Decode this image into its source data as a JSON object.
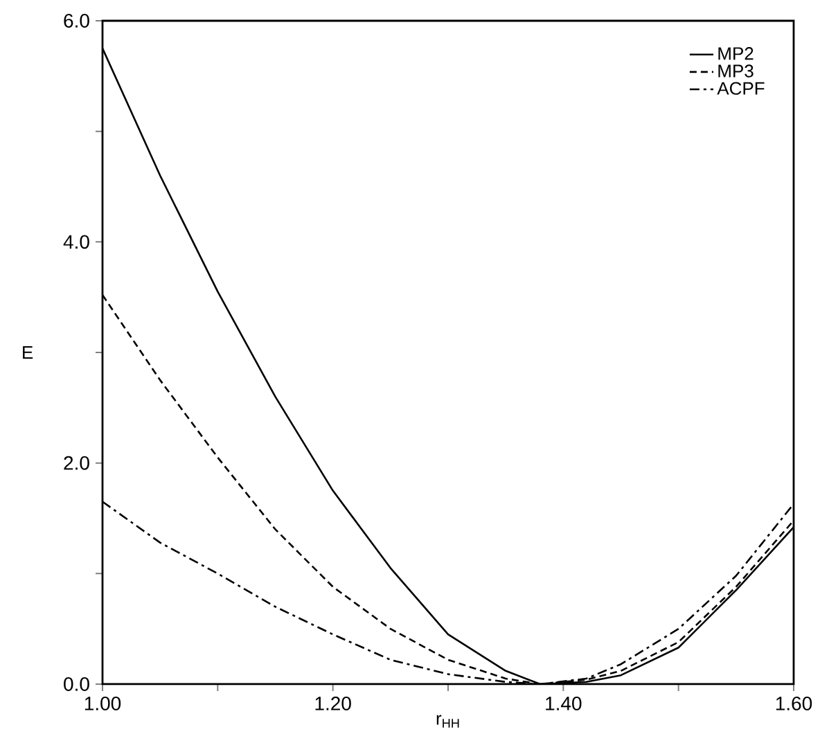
{
  "chart_data": {
    "type": "line",
    "xlabel": "r$_{HH}$",
    "ylabel": "E",
    "xlim": [
      1.0,
      1.6
    ],
    "ylim": [
      0.0,
      6.0
    ],
    "xticks": [
      {
        "value": 1.0,
        "label": "1.00"
      },
      {
        "value": 1.1,
        "label": null
      },
      {
        "value": 1.2,
        "label": "1.20"
      },
      {
        "value": 1.3,
        "label": null
      },
      {
        "value": 1.4,
        "label": "1.40"
      },
      {
        "value": 1.5,
        "label": null
      },
      {
        "value": 1.6,
        "label": "1.60"
      }
    ],
    "yticks": [
      {
        "value": 0,
        "label": "0.0"
      },
      {
        "value": 1,
        "label": null
      },
      {
        "value": 2,
        "label": "2.0"
      },
      {
        "value": 3,
        "label": null
      },
      {
        "value": 4,
        "label": "4.0"
      },
      {
        "value": 5,
        "label": null
      },
      {
        "value": 6,
        "label": "6.0"
      }
    ],
    "x": [
      1.0,
      1.05,
      1.1,
      1.15,
      1.2,
      1.25,
      1.3,
      1.35,
      1.38,
      1.42,
      1.45,
      1.5,
      1.55,
      1.6
    ],
    "grid": false,
    "legend": "top right",
    "marker": "none",
    "series": [
      {
        "name": "MP2",
        "color": "#000000",
        "line_style": "solid",
        "values": [
          5.75,
          4.6,
          3.55,
          2.6,
          1.75,
          1.05,
          0.45,
          0.12,
          0.0,
          0.02,
          0.08,
          0.33,
          0.85,
          1.42
        ]
      },
      {
        "name": "MP3",
        "color": "#000000",
        "line_style": "dashed",
        "values": [
          3.52,
          2.75,
          2.05,
          1.4,
          0.88,
          0.5,
          0.22,
          0.05,
          0.0,
          0.04,
          0.12,
          0.38,
          0.88,
          1.48
        ]
      },
      {
        "name": "ACPF",
        "color": "#000000",
        "line_style": "dashdot",
        "values": [
          1.65,
          1.28,
          1.0,
          0.7,
          0.45,
          0.22,
          0.09,
          0.02,
          0.0,
          0.05,
          0.18,
          0.5,
          0.98,
          1.63
        ]
      }
    ]
  }
}
